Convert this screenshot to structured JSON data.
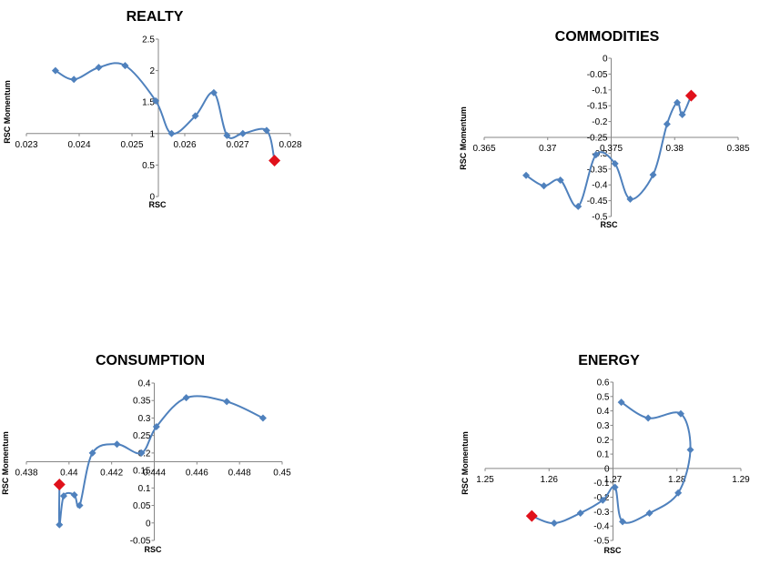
{
  "chart_data": [
    {
      "type": "line",
      "title": "REALTY",
      "xlabel": "RSC",
      "ylabel": "RSC Momentum",
      "xlim": [
        0.023,
        0.028
      ],
      "ylim": [
        0,
        2.5
      ],
      "x_ticks": [
        "0.023",
        "0.024",
        "0.025",
        "0.026",
        "0.027",
        "0.028"
      ],
      "y_ticks": [
        "0",
        "0.5",
        "1",
        "1.5",
        "2",
        "2.5"
      ],
      "crossing_y": 1,
      "grid": false,
      "line_color": "#4f81bd",
      "marker_color": "#4f81bd",
      "last_marker_color": "#e0111b",
      "points": [
        {
          "x": 0.02355,
          "y": 2.0
        },
        {
          "x": 0.0239,
          "y": 1.86
        },
        {
          "x": 0.02437,
          "y": 2.05
        },
        {
          "x": 0.02487,
          "y": 2.08
        },
        {
          "x": 0.02545,
          "y": 1.52
        },
        {
          "x": 0.02575,
          "y": 1.0
        },
        {
          "x": 0.0262,
          "y": 1.28
        },
        {
          "x": 0.02655,
          "y": 1.65
        },
        {
          "x": 0.0268,
          "y": 0.97
        },
        {
          "x": 0.0271,
          "y": 1.0
        },
        {
          "x": 0.02755,
          "y": 1.05
        },
        {
          "x": 0.0277,
          "y": 0.57
        }
      ]
    },
    {
      "type": "line",
      "title": "COMMODITIES",
      "xlabel": "RSC",
      "ylabel": "RSC Momentum",
      "xlim": [
        0.365,
        0.385
      ],
      "ylim": [
        -0.5,
        0
      ],
      "x_ticks": [
        "0.365",
        "0.37",
        "0.375",
        "0.38",
        "0.385"
      ],
      "y_ticks": [
        "0",
        "-0.05",
        "-0.1",
        "-0.15",
        "-0.2",
        "-0.25",
        "-0.3",
        "-0.35",
        "-0.4",
        "-0.45",
        "-0.5"
      ],
      "crossing_y": -0.25,
      "grid": false,
      "line_color": "#4f81bd",
      "marker_color": "#4f81bd",
      "last_marker_color": "#e0111b",
      "points": [
        {
          "x": 0.3683,
          "y": -0.37
        },
        {
          "x": 0.3697,
          "y": -0.403
        },
        {
          "x": 0.371,
          "y": -0.385
        },
        {
          "x": 0.3724,
          "y": -0.468
        },
        {
          "x": 0.3738,
          "y": -0.305
        },
        {
          "x": 0.3753,
          "y": -0.333
        },
        {
          "x": 0.3765,
          "y": -0.445
        },
        {
          "x": 0.3783,
          "y": -0.368
        },
        {
          "x": 0.3794,
          "y": -0.208
        },
        {
          "x": 0.3802,
          "y": -0.14
        },
        {
          "x": 0.3806,
          "y": -0.178
        },
        {
          "x": 0.3813,
          "y": -0.118
        }
      ]
    },
    {
      "type": "line",
      "title": "CONSUMPTION",
      "xlabel": "RSC",
      "ylabel": "RSC Momentum",
      "xlim": [
        0.438,
        0.45
      ],
      "ylim": [
        -0.05,
        0.4
      ],
      "x_ticks": [
        "0.438",
        "0.44",
        "0.442",
        "0.444",
        "0.446",
        "0.448",
        "0.45"
      ],
      "y_ticks": [
        "-0.05",
        "0",
        "0.05",
        "0.1",
        "0.15",
        "0.2",
        "0.25",
        "0.3",
        "0.35",
        "0.4"
      ],
      "crossing_y": 0.175,
      "grid": false,
      "line_color": "#4f81bd",
      "marker_color": "#4f81bd",
      "last_marker_color": "#e0111b",
      "points": [
        {
          "x": 0.4491,
          "y": 0.3
        },
        {
          "x": 0.4474,
          "y": 0.347
        },
        {
          "x": 0.4455,
          "y": 0.358
        },
        {
          "x": 0.4441,
          "y": 0.275
        },
        {
          "x": 0.4434,
          "y": 0.2
        },
        {
          "x": 0.44225,
          "y": 0.225
        },
        {
          "x": 0.4411,
          "y": 0.2
        },
        {
          "x": 0.4405,
          "y": 0.05
        },
        {
          "x": 0.44025,
          "y": 0.08
        },
        {
          "x": 0.43975,
          "y": 0.077
        },
        {
          "x": 0.43955,
          "y": -0.005
        },
        {
          "x": 0.43955,
          "y": 0.11
        }
      ]
    },
    {
      "type": "line",
      "title": "ENERGY",
      "xlabel": "RSC",
      "ylabel": "RSC Momentum",
      "xlim": [
        1.25,
        1.29
      ],
      "ylim": [
        -0.5,
        0.6
      ],
      "x_ticks": [
        "1.25",
        "1.26",
        "1.27",
        "1.28",
        "1.29"
      ],
      "y_ticks": [
        "-0.5",
        "-0.4",
        "-0.3",
        "-0.2",
        "-0.1",
        "0",
        "0.1",
        "0.2",
        "0.3",
        "0.4",
        "0.5",
        "0.6"
      ],
      "crossing_y": 0,
      "grid": false,
      "line_color": "#4f81bd",
      "marker_color": "#4f81bd",
      "last_marker_color": "#e0111b",
      "points": [
        {
          "x": 1.2713,
          "y": 0.46
        },
        {
          "x": 1.2755,
          "y": 0.35
        },
        {
          "x": 1.2806,
          "y": 0.38
        },
        {
          "x": 1.2821,
          "y": 0.13
        },
        {
          "x": 1.2802,
          "y": -0.17
        },
        {
          "x": 1.2757,
          "y": -0.31
        },
        {
          "x": 1.2715,
          "y": -0.37
        },
        {
          "x": 1.2703,
          "y": -0.13
        },
        {
          "x": 1.2684,
          "y": -0.22
        },
        {
          "x": 1.2649,
          "y": -0.31
        },
        {
          "x": 1.2608,
          "y": -0.38
        },
        {
          "x": 1.2573,
          "y": -0.33
        }
      ]
    }
  ]
}
